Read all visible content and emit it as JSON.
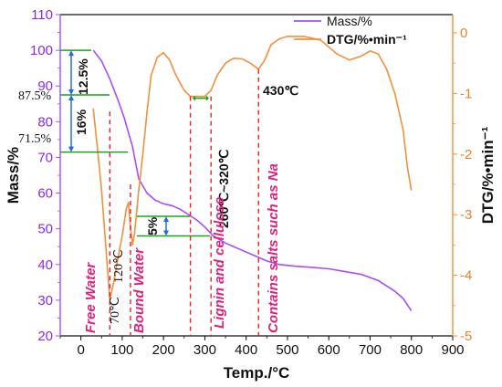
{
  "chart_data": {
    "type": "line",
    "xlabel": "Temp./°C",
    "ylabel": "Mass/%",
    "y2label": "DTG/%•min⁻¹",
    "xlim": [
      -50,
      900
    ],
    "ylim": [
      20,
      110
    ],
    "y2lim": [
      -5,
      0.3
    ],
    "x_ticks": [
      "0",
      "100",
      "200",
      "300",
      "400",
      "500",
      "600",
      "700",
      "800",
      "900"
    ],
    "y_ticks": [
      "20",
      "30",
      "40",
      "50",
      "60",
      "70",
      "80",
      "90",
      "100",
      "110"
    ],
    "y2_ticks": [
      "-5",
      "-4",
      "-3",
      "-2",
      "-1",
      "0"
    ],
    "legend_position": "top-right",
    "series": [
      {
        "name": "Mass/%",
        "axis": "left",
        "color": "#a64dff",
        "x": [
          30,
          50,
          70,
          90,
          105,
          115,
          125,
          140,
          160,
          180,
          200,
          220,
          240,
          260,
          280,
          300,
          320,
          350,
          380,
          420,
          450,
          480,
          520,
          560,
          600,
          640,
          680,
          720,
          760,
          780,
          800
        ],
        "y": [
          100,
          97,
          92,
          86,
          81,
          77,
          73,
          64,
          60,
          58,
          57,
          56.5,
          55.5,
          54,
          52.5,
          50.5,
          48,
          46,
          44.5,
          42.5,
          41,
          40,
          39.5,
          39.2,
          38.8,
          38,
          37.2,
          35.5,
          32.5,
          30.5,
          27
        ]
      },
      {
        "name": "DTG/%•min⁻¹",
        "axis": "right",
        "color": "#f0913c",
        "x": [
          30,
          40,
          50,
          60,
          70,
          80,
          90,
          100,
          110,
          115,
          120,
          125,
          130,
          140,
          150,
          160,
          170,
          185,
          200,
          215,
          230,
          250,
          265,
          280,
          300,
          315,
          330,
          350,
          370,
          390,
          410,
          430,
          445,
          460,
          480,
          500,
          540,
          580,
          620,
          650,
          680,
          700,
          720,
          740,
          760,
          780,
          790,
          800
        ],
        "y": [
          -1.25,
          -1.9,
          -2.6,
          -3.5,
          -4.4,
          -4.1,
          -3.7,
          -3.35,
          -2.9,
          -2.8,
          -3.2,
          -3.5,
          -3.3,
          -2.6,
          -2.0,
          -1.3,
          -0.7,
          -0.4,
          -0.33,
          -0.45,
          -0.7,
          -0.95,
          -1.05,
          -1.05,
          -1.05,
          -0.95,
          -0.7,
          -0.5,
          -0.42,
          -0.43,
          -0.5,
          -0.6,
          -0.45,
          -0.2,
          -0.1,
          -0.06,
          -0.06,
          -0.12,
          -0.35,
          -0.45,
          -0.38,
          -0.3,
          -0.35,
          -0.6,
          -1.0,
          -1.6,
          -2.2,
          -2.6
        ]
      }
    ],
    "annotations": {
      "pct_top": "12.5%",
      "pct_mid": "16%",
      "pct_small": "5%",
      "label_875": "87.5%",
      "label_715": "71.5%",
      "temp_70": "70℃",
      "temp_120": "120℃",
      "temp_range": "260℃~320℃",
      "temp_430": "430℃",
      "stage_free_water": "Free Water",
      "stage_bound_water": "Bound Water",
      "stage_lignin": "Lignin and cellulose",
      "stage_salts": "Contains salts such as Na"
    }
  }
}
